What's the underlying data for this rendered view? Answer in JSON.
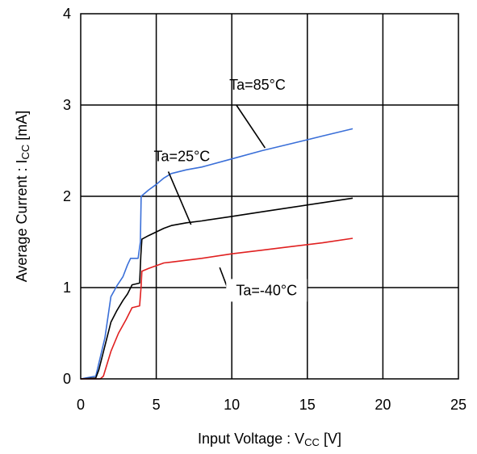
{
  "chart_data": {
    "type": "line",
    "title": "",
    "xlabel": "Input Voltage : V",
    "xlabel_sub": "CC",
    "xlabel_unit": " [V]",
    "ylabel": "Average Current : I",
    "ylabel_sub": "CC",
    "ylabel_unit": " [mA]",
    "xlim": [
      0,
      25
    ],
    "ylim": [
      0,
      4
    ],
    "xticks": [
      0,
      5,
      10,
      15,
      20,
      25
    ],
    "yticks": [
      0,
      1,
      2,
      3,
      4
    ],
    "grid": true,
    "series": [
      {
        "name": "Ta=85°C",
        "color": "#3a6fd8",
        "points": [
          [
            0,
            0
          ],
          [
            1,
            0.03
          ],
          [
            1.6,
            0.45
          ],
          [
            2,
            0.9
          ],
          [
            2.4,
            1.02
          ],
          [
            2.8,
            1.12
          ],
          [
            3.1,
            1.25
          ],
          [
            3.3,
            1.32
          ],
          [
            3.8,
            1.32
          ],
          [
            3.95,
            1.5
          ],
          [
            4.0,
            2.0
          ],
          [
            4.5,
            2.07
          ],
          [
            5.0,
            2.13
          ],
          [
            5.5,
            2.2
          ],
          [
            6,
            2.25
          ],
          [
            7,
            2.29
          ],
          [
            8,
            2.32
          ],
          [
            10,
            2.41
          ],
          [
            12,
            2.5
          ],
          [
            14,
            2.58
          ],
          [
            16,
            2.66
          ],
          [
            18,
            2.74
          ]
        ]
      },
      {
        "name": "Ta=25°C",
        "color": "#000000",
        "points": [
          [
            0,
            0
          ],
          [
            1,
            0.01
          ],
          [
            1.2,
            0.1
          ],
          [
            2,
            0.62
          ],
          [
            2.4,
            0.75
          ],
          [
            2.8,
            0.86
          ],
          [
            3.1,
            0.93
          ],
          [
            3.4,
            1.03
          ],
          [
            3.9,
            1.05
          ],
          [
            3.98,
            1.35
          ],
          [
            4.05,
            1.53
          ],
          [
            4.5,
            1.57
          ],
          [
            5.0,
            1.61
          ],
          [
            5.5,
            1.65
          ],
          [
            6,
            1.68
          ],
          [
            7,
            1.71
          ],
          [
            8,
            1.73
          ],
          [
            10,
            1.78
          ],
          [
            12,
            1.83
          ],
          [
            14,
            1.88
          ],
          [
            16,
            1.93
          ],
          [
            18,
            1.98
          ]
        ]
      },
      {
        "name": "Ta=-40°C",
        "color": "#e02020",
        "points": [
          [
            0,
            0
          ],
          [
            1.3,
            0
          ],
          [
            1.5,
            0.03
          ],
          [
            2,
            0.3
          ],
          [
            2.5,
            0.5
          ],
          [
            3,
            0.65
          ],
          [
            3.4,
            0.78
          ],
          [
            3.9,
            0.8
          ],
          [
            4.0,
            1.02
          ],
          [
            4.05,
            1.18
          ],
          [
            4.5,
            1.21
          ],
          [
            5,
            1.24
          ],
          [
            5.5,
            1.27
          ],
          [
            6,
            1.28
          ],
          [
            8,
            1.32
          ],
          [
            10,
            1.37
          ],
          [
            12,
            1.41
          ],
          [
            14,
            1.45
          ],
          [
            16,
            1.49
          ],
          [
            18,
            1.54
          ]
        ]
      }
    ],
    "annotations": [
      {
        "text": "Ta=85°C",
        "series": "Ta=85°C",
        "label_at": [
          11.7,
          3.22
        ],
        "arrow_from": [
          10.3,
          3.0
        ],
        "arrow_to": [
          12.2,
          2.53
        ]
      },
      {
        "text": "Ta=25°C",
        "series": "Ta=25°C",
        "label_at": [
          6.7,
          2.44
        ],
        "arrow_from": [
          5.8,
          2.27
        ],
        "arrow_to": [
          7.3,
          1.69
        ]
      },
      {
        "text": "Ta=-40°C",
        "series": "Ta=-40°C",
        "label_at": [
          12.3,
          0.97
        ],
        "arrow_from": [
          10.0,
          0.87
        ],
        "arrow_to": [
          9.2,
          1.22
        ],
        "line_left_from": [
          5.4,
          0.97
        ],
        "line_right_to": [
          19.0,
          0.97
        ]
      }
    ]
  }
}
